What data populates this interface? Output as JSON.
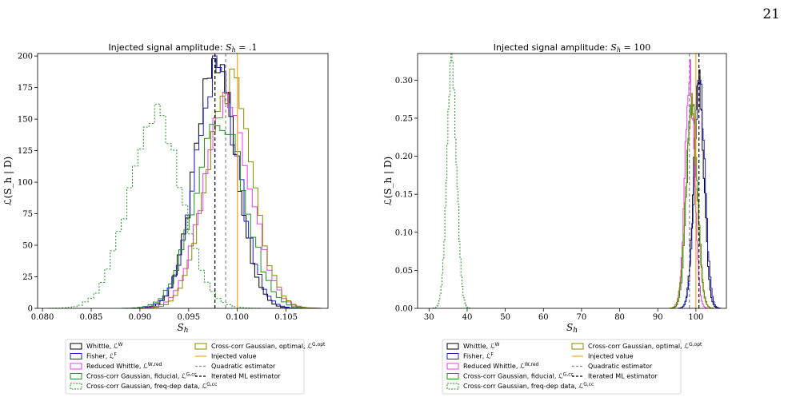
{
  "page_number": "21",
  "chart_data": [
    {
      "type": "histogram",
      "title": "Injected signal amplitude: S_h = .1",
      "xlabel": "S_h",
      "ylabel": "ℒ(S_h | D)",
      "xlim": [
        0.0795,
        0.1093
      ],
      "ylim": [
        0,
        202
      ],
      "xticks": [
        "0.080",
        "0.085",
        "0.090",
        "0.095",
        "0.100",
        "0.105"
      ],
      "xtick_values": [
        0.08,
        0.085,
        0.09,
        0.095,
        0.1,
        0.105
      ],
      "yticks": [
        "0",
        "25",
        "50",
        "75",
        "100",
        "125",
        "150",
        "175",
        "200"
      ],
      "ytick_values": [
        0,
        25,
        50,
        75,
        100,
        125,
        150,
        175,
        200
      ],
      "vlines": [
        {
          "name": "Injected value",
          "x": 0.1,
          "color": "#f5a623",
          "dash": "solid"
        },
        {
          "name": "Quadratic estimator",
          "x": 0.0988,
          "color": "#8c8c8c",
          "dash": "dashed"
        },
        {
          "name": "Iterated ML estimator",
          "x": 0.0977,
          "color": "#000000",
          "dash": "dashed"
        }
      ],
      "series": [
        {
          "name": "Whittle, ℒ^W",
          "color": "#000000",
          "dash": "solid",
          "center": 0.0978,
          "sigma": 0.0021,
          "peak": 194
        },
        {
          "name": "Fisher, ℒ^F",
          "color": "#1f1fbf",
          "dash": "solid",
          "center": 0.0979,
          "sigma": 0.0022,
          "peak": 185
        },
        {
          "name": "Reduced Whittle, ℒ^W,red",
          "color": "#e83cf0",
          "dash": "solid",
          "center": 0.099,
          "sigma": 0.0024,
          "peak": 160
        },
        {
          "name": "Cross-corr Gaussian, fiducial, ℒ^G,cc",
          "color": "#228b22",
          "dash": "solid",
          "center": 0.0982,
          "sigma": 0.0025,
          "peak": 155
        },
        {
          "name": "Cross-corr Gaussian, freq-dep data, ℒ^G,cc",
          "color": "#228b22",
          "dash": "dotted",
          "center": 0.0915,
          "sigma": 0.0027,
          "peak": 152
        },
        {
          "name": "Cross-corr Gaussian, optimal, ℒ^G,opt",
          "color": "#8b8b00",
          "dash": "solid",
          "center": 0.0992,
          "sigma": 0.0023,
          "peak": 178
        }
      ]
    },
    {
      "type": "histogram",
      "title": "Injected signal amplitude: S_h = 100",
      "xlabel": "S_h",
      "ylabel": "ℒ(S_h | D)",
      "xlim": [
        27,
        108
      ],
      "ylim": [
        0,
        0.335
      ],
      "xticks": [
        "30",
        "40",
        "50",
        "60",
        "70",
        "80",
        "90",
        "100"
      ],
      "xtick_values": [
        30,
        40,
        50,
        60,
        70,
        80,
        90,
        100
      ],
      "yticks": [
        "0.00",
        "0.05",
        "0.10",
        "0.15",
        "0.20",
        "0.25",
        "0.30"
      ],
      "ytick_values": [
        0,
        0.05,
        0.1,
        0.15,
        0.2,
        0.25,
        0.3
      ],
      "vlines": [
        {
          "name": "Injected value",
          "x": 100,
          "color": "#f5a623",
          "dash": "solid"
        },
        {
          "name": "Quadratic estimator",
          "x": 98.3,
          "color": "#8c8c8c",
          "dash": "dashed"
        },
        {
          "name": "Iterated ML estimator",
          "x": 100.8,
          "color": "#000000",
          "dash": "dashed"
        }
      ],
      "series": [
        {
          "name": "Whittle, ℒ^W",
          "color": "#000000",
          "dash": "solid",
          "center": 100.8,
          "sigma": 1.35,
          "peak": 0.29
        },
        {
          "name": "Fisher, ℒ^F",
          "color": "#1f1fbf",
          "dash": "solid",
          "center": 101.0,
          "sigma": 1.4,
          "peak": 0.285
        },
        {
          "name": "Reduced Whittle, ℒ^W,red",
          "color": "#e83cf0",
          "dash": "solid",
          "center": 98.4,
          "sigma": 1.2,
          "peak": 0.315
        },
        {
          "name": "Cross-corr Gaussian, fiducial, ℒ^G,cc",
          "color": "#228b22",
          "dash": "solid",
          "center": 99.0,
          "sigma": 1.4,
          "peak": 0.27
        },
        {
          "name": "Cross-corr Gaussian, freq-dep data, ℒ^G,cc",
          "color": "#228b22",
          "dash": "dotted",
          "center": 36.0,
          "sigma": 1.25,
          "peak": 0.322
        },
        {
          "name": "Cross-corr Gaussian, optimal, ℒ^G,opt",
          "color": "#8b8b00",
          "dash": "solid",
          "center": 98.8,
          "sigma": 1.45,
          "peak": 0.268
        }
      ]
    }
  ],
  "legend": {
    "left_column": [
      {
        "label": "Whittle, ℒ^W",
        "color": "#000000",
        "kind": "box"
      },
      {
        "label": "Fisher, ℒ^F",
        "color": "#1f1fbf",
        "kind": "box"
      },
      {
        "label": "Reduced Whittle, ℒ^W,red",
        "color": "#e83cf0",
        "kind": "box"
      },
      {
        "label": "Cross-corr Gaussian, fiducial, ℒ^G,cc",
        "color": "#228b22",
        "kind": "box"
      },
      {
        "label": "Cross-corr Gaussian, freq-dep data, ℒ^G,cc",
        "color": "#228b22",
        "kind": "dotted-box"
      }
    ],
    "right_column": [
      {
        "label": "Cross-corr Gaussian, optimal, ℒ^G,opt",
        "color": "#8b8b00",
        "kind": "box"
      },
      {
        "label": "Injected value",
        "color": "#f5a623",
        "kind": "line"
      },
      {
        "label": "Quadratic estimator",
        "color": "#8c8c8c",
        "kind": "dashed-line"
      },
      {
        "label": "Iterated ML estimator",
        "color": "#000000",
        "kind": "dashed-line"
      }
    ]
  }
}
